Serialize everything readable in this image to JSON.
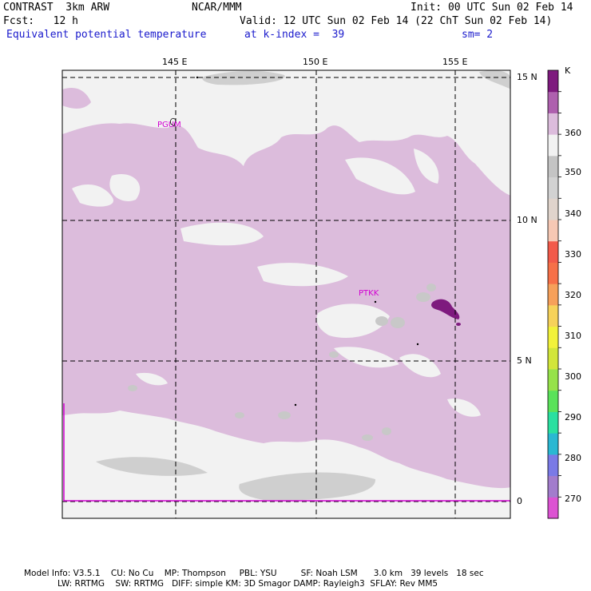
{
  "header": {
    "model": "CONTRAST  3km ARW",
    "org": "NCAR/MMM",
    "init": "Init: 00 UTC Sun 02 Feb 14",
    "fcst": "Fcst:   12 h",
    "valid": "Valid: 12 UTC Sun 02 Feb 14 (22 ChT Sun 02 Feb 14)",
    "field": "Equivalent potential temperature",
    "level": "at k-index =  39",
    "smooth": "sm= 2"
  },
  "map": {
    "lon_labels": [
      "145 E",
      "150 E",
      "155 E"
    ],
    "lat_labels": [
      "15 N",
      "10 N",
      "5 N",
      "0"
    ],
    "stations": [
      {
        "id": "PGUM"
      },
      {
        "id": "PTKK"
      }
    ]
  },
  "colorbar": {
    "unit": "K",
    "tick_labels": [
      "360",
      "350",
      "340",
      "330",
      "320",
      "310",
      "300",
      "290",
      "280",
      "270"
    ],
    "colors": [
      "#dc52d2",
      "#a27ccc",
      "#7a7ae6",
      "#2ab8d2",
      "#2ae0a0",
      "#5ae25a",
      "#96e24a",
      "#d2e63a",
      "#f2f23a",
      "#f6d25a",
      "#f6a05a",
      "#f67048",
      "#f25a4a",
      "#f6c8b4",
      "#e0d4cc",
      "#d2d2d2",
      "#c4c4c4",
      "#f2f2f2",
      "#dcbcdc",
      "#ae60ae",
      "#7e1a7e"
    ]
  },
  "footer": {
    "line1": "Model Info: V3.5.1    CU: No Cu    MP: Thompson     PBL: YSU         SF: Noah LSM      3.0 km   39 levels   18 sec",
    "line2": "LW: RRTMG    SW: RRTMG   DIFF: simple KM: 3D Smagor DAMP: Rayleigh3  SFLAY: Rev MM5"
  }
}
